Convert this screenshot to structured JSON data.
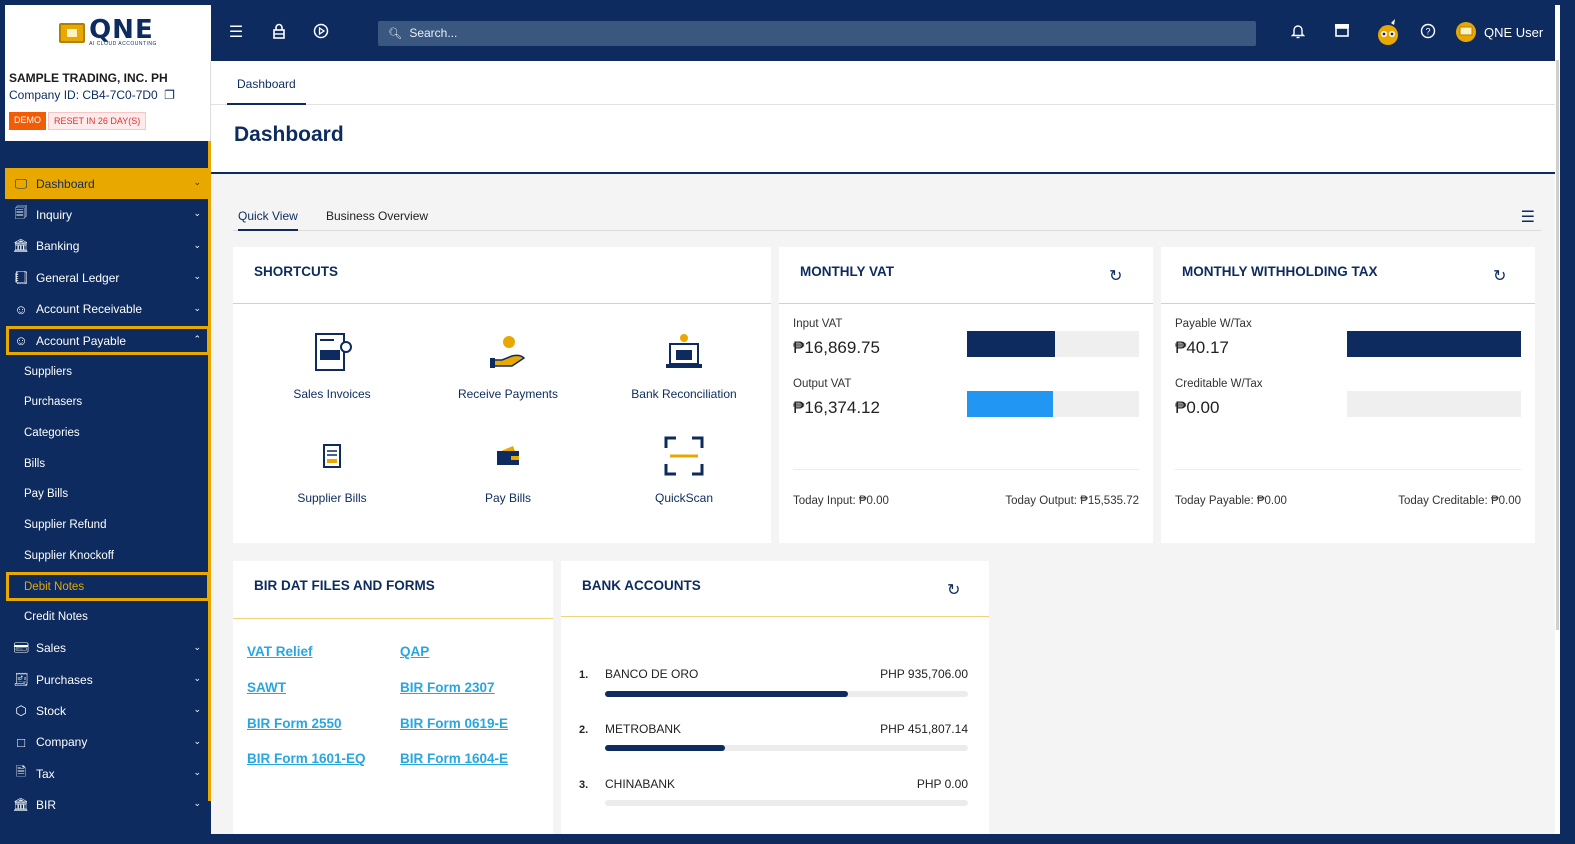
{
  "header": {
    "logo_text": "QNE",
    "logo_sub": "AI CLOUD ACCOUNTING",
    "search_placeholder": "Search...",
    "user_name": "QNE User"
  },
  "company": {
    "name": "SAMPLE TRADING, INC. PH",
    "id_line": "Company ID: CB4-7C0-7D0",
    "badge_demo": "DEMO",
    "badge_reset": "RESET IN 26 DAY(S)"
  },
  "sidebar": {
    "items": [
      {
        "label": "Dashboard"
      },
      {
        "label": "Inquiry"
      },
      {
        "label": "Banking"
      },
      {
        "label": "General Ledger"
      },
      {
        "label": "Account Receivable"
      },
      {
        "label": "Account Payable"
      }
    ],
    "sub_items": [
      {
        "label": "Suppliers"
      },
      {
        "label": "Purchasers"
      },
      {
        "label": "Categories"
      },
      {
        "label": "Bills"
      },
      {
        "label": "Pay Bills"
      },
      {
        "label": "Supplier Refund"
      },
      {
        "label": "Supplier Knockoff"
      },
      {
        "label": "Debit Notes"
      },
      {
        "label": "Credit Notes"
      }
    ],
    "items_after": [
      {
        "label": "Sales"
      },
      {
        "label": "Purchases"
      },
      {
        "label": "Stock"
      },
      {
        "label": "Company"
      },
      {
        "label": "Tax"
      },
      {
        "label": "BIR"
      }
    ]
  },
  "tabs": {
    "dashboard": "Dashboard"
  },
  "page": {
    "title": "Dashboard"
  },
  "subtabs": {
    "quick_view": "Quick View",
    "business_overview": "Business Overview"
  },
  "shortcuts": {
    "title": "SHORTCUTS",
    "items": [
      {
        "label": "Sales Invoices"
      },
      {
        "label": "Receive Payments"
      },
      {
        "label": "Bank Reconciliation"
      },
      {
        "label": "Supplier Bills"
      },
      {
        "label": "Pay Bills"
      },
      {
        "label": "QuickScan"
      }
    ]
  },
  "monthly_vat": {
    "title": "MONTHLY VAT",
    "input_label": "Input VAT",
    "input_value": "₱16,869.75",
    "input_fill": 0.51,
    "output_label": "Output VAT",
    "output_value": "₱16,374.12",
    "output_fill": 0.5,
    "today_input": "Today Input: ₱0.00",
    "today_output": "Today Output: ₱15,535.72",
    "input_color": "#0d2b5e",
    "output_color": "#2196f3"
  },
  "monthly_wtax": {
    "title": "MONTHLY WITHHOLDING TAX",
    "payable_label": "Payable W/Tax",
    "payable_value": "₱40.17",
    "payable_fill": 1.0,
    "creditable_label": "Creditable W/Tax",
    "creditable_value": "₱0.00",
    "creditable_fill": 0.0,
    "today_payable": "Today Payable: ₱0.00",
    "today_creditable": "Today Creditable: ₱0.00"
  },
  "bir": {
    "title": "BIR DAT FILES AND FORMS",
    "links": [
      {
        "label": "VAT Relief"
      },
      {
        "label": "QAP"
      },
      {
        "label": "SAWT"
      },
      {
        "label": "BIR Form 2307"
      },
      {
        "label": "BIR Form 2550"
      },
      {
        "label": "BIR Form 0619-E"
      },
      {
        "label": "BIR Form 1601-EQ"
      },
      {
        "label": "BIR Form 1604-E"
      }
    ]
  },
  "bank_accounts": {
    "title": "BANK ACCOUNTS",
    "accounts": [
      {
        "num": "1.",
        "name": "BANCO DE ORO",
        "amount": "PHP 935,706.00",
        "fill": 0.67
      },
      {
        "num": "2.",
        "name": "METROBANK",
        "amount": "PHP 451,807.14",
        "fill": 0.33
      },
      {
        "num": "3.",
        "name": "CHINABANK",
        "amount": "PHP 0.00",
        "fill": 0.0
      }
    ]
  },
  "colors": {
    "brand": "#0d2b5e",
    "accent": "#e8a800",
    "link": "#29a6e0"
  }
}
